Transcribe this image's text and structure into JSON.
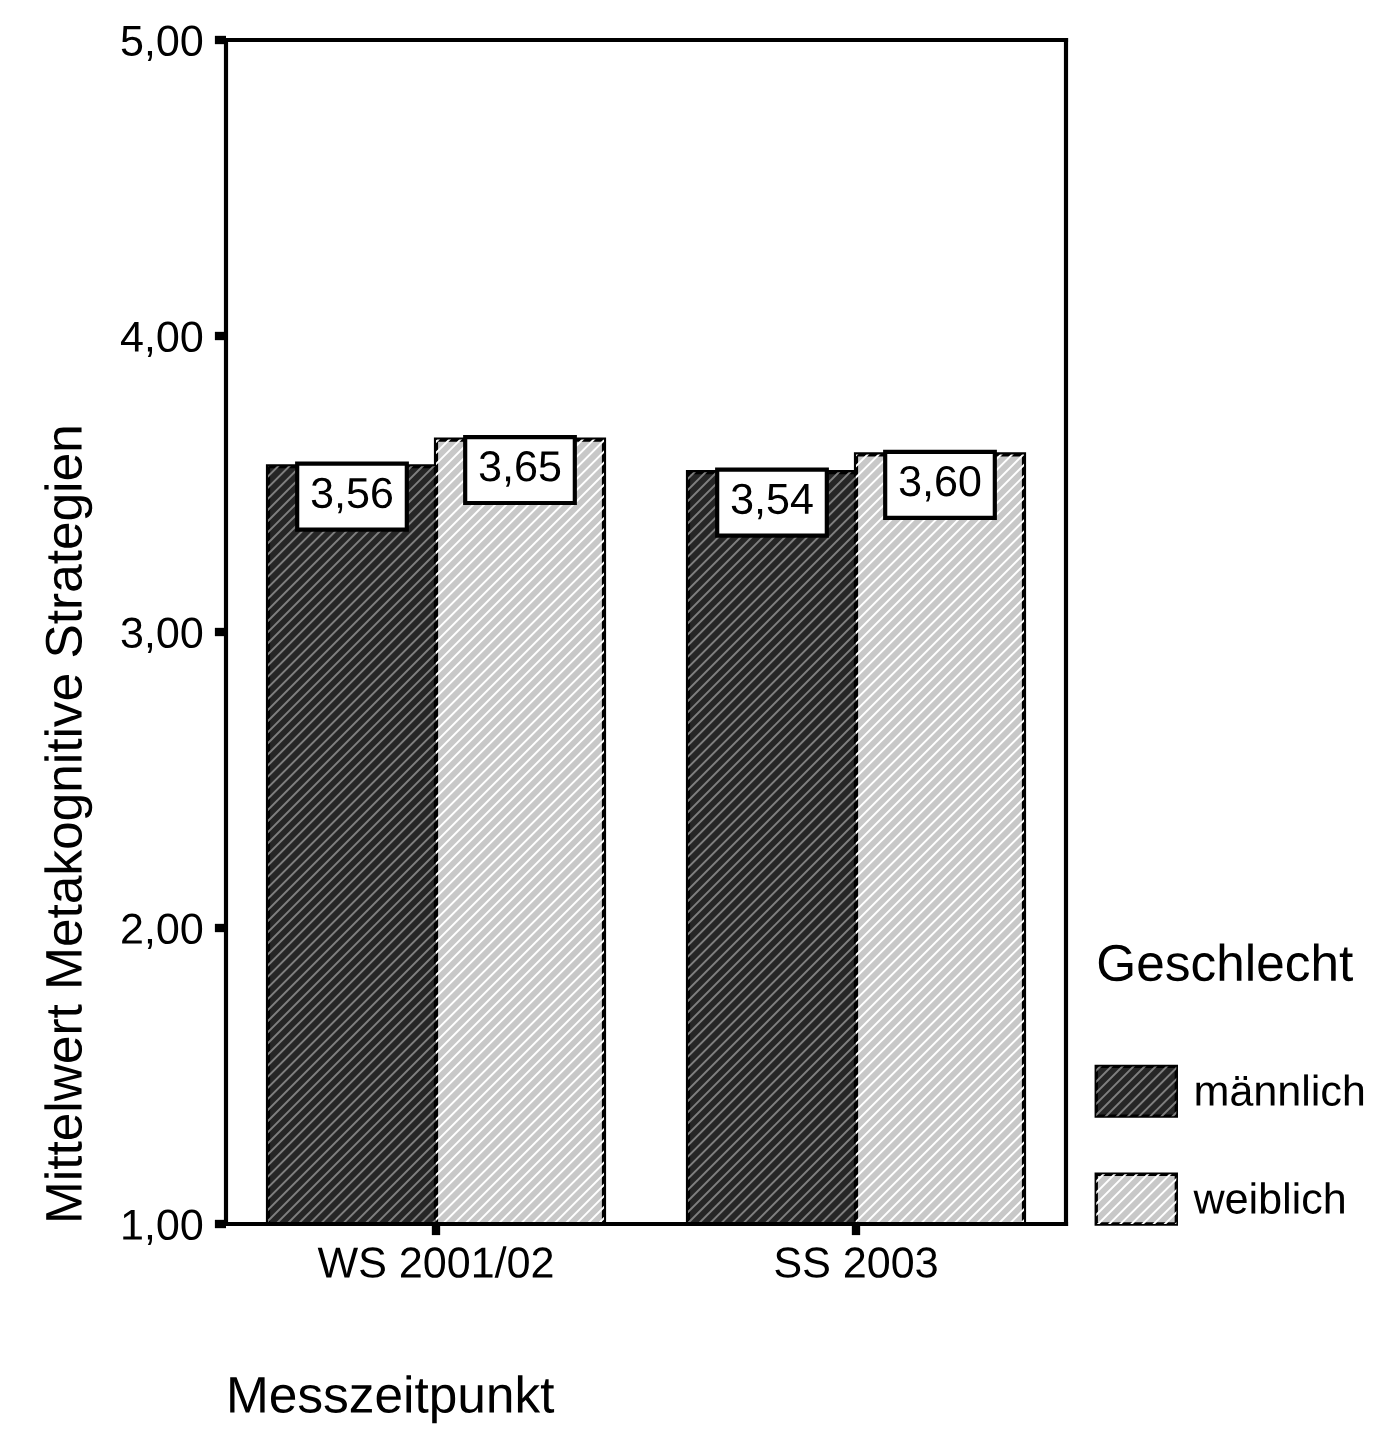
{
  "chart_data": {
    "type": "bar",
    "categories": [
      "WS 2001/02",
      "SS 2003"
    ],
    "series": [
      {
        "name": "männlich",
        "color": "#262626",
        "values": [
          3.56,
          3.54
        ],
        "value_labels": [
          "3,56",
          "3,54"
        ]
      },
      {
        "name": "weiblich",
        "color": "#c8c8c8",
        "values": [
          3.65,
          3.6
        ],
        "value_labels": [
          "3,65",
          "3,60"
        ]
      }
    ],
    "ylim": [
      1,
      5
    ],
    "yticks": [
      {
        "value": 1,
        "label": "1,00"
      },
      {
        "value": 2,
        "label": "2,00"
      },
      {
        "value": 3,
        "label": "3,00"
      },
      {
        "value": 4,
        "label": "4,00"
      },
      {
        "value": 5,
        "label": "5,00"
      }
    ],
    "xlabel": "Messzeitpunkt",
    "ylabel": "Mittelwert Metakognitive Strategien",
    "legend_title": "Geschlecht",
    "legend": "right"
  }
}
